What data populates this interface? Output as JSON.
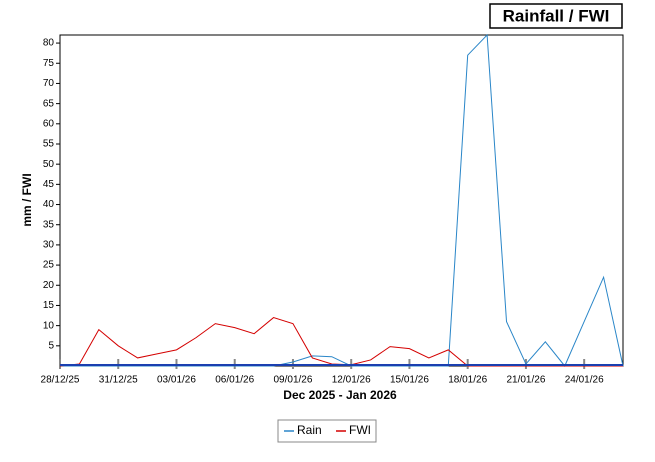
{
  "chart_data": {
    "type": "line",
    "title": "Rainfall / FWI",
    "x_label": "Dec 2025 - Jan 2026",
    "y_label": "mm / FWI",
    "categories": [
      "28/12/25",
      null,
      null,
      "31/12/25",
      null,
      null,
      "03/01/26",
      null,
      null,
      "06/01/26",
      null,
      null,
      "09/01/26",
      null,
      null,
      "12/01/26",
      null,
      null,
      "15/01/26",
      null,
      null,
      "18/01/26",
      null,
      null,
      "21/01/26",
      null,
      null,
      "24/01/26",
      null,
      null
    ],
    "series": [
      {
        "name": "Rain",
        "color": "#2a86c8",
        "values": [
          0,
          0,
          0,
          0,
          0,
          0,
          0,
          0,
          0,
          0,
          0,
          0,
          1,
          2.5,
          2.3,
          0,
          0,
          0,
          0,
          0,
          0,
          77,
          82,
          11,
          0.5,
          6,
          0,
          11,
          22,
          0
        ]
      },
      {
        "name": "FWI",
        "color": "#d40000",
        "values": [
          0,
          0.5,
          9,
          5,
          2,
          3,
          4,
          7,
          10.5,
          9.5,
          8,
          12,
          10.5,
          2,
          0.5,
          0.3,
          1.5,
          4.8,
          4.3,
          2,
          4,
          0,
          0,
          0,
          0,
          0,
          0,
          0,
          0,
          0
        ]
      }
    ],
    "ylim": [
      0,
      82
    ],
    "yticks": [
      5,
      10,
      15,
      20,
      25,
      30,
      35,
      40,
      45,
      50,
      55,
      60,
      65,
      70,
      75,
      80
    ],
    "legend": "bottom"
  }
}
